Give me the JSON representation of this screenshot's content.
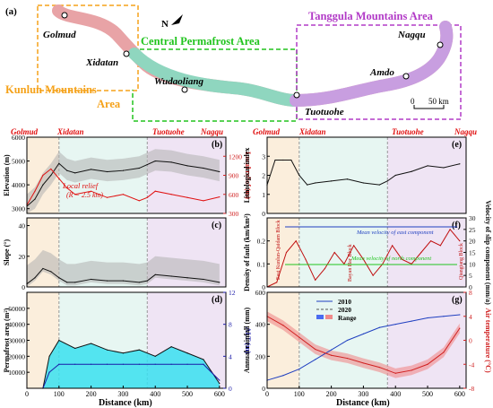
{
  "map": {
    "label": "(a)",
    "stations": [
      "Golmud",
      "Xidatan",
      "Wudaoliang",
      "Tuotuohe",
      "Amdo",
      "Nagqu"
    ],
    "regions": {
      "kunlun_a": "Kunlun  Mountains",
      "kunlun_b": "Area",
      "central": "Central Permafrost  Area",
      "tanggula": "Tanggula Mountains Area"
    },
    "scale": {
      "zero": "0",
      "km": "50 km"
    },
    "north": "N",
    "colors": {
      "kunlun": "#f5a21a",
      "central": "#22c41f",
      "tanggula": "#b23bc7"
    }
  },
  "axis_stations": {
    "golmud": "Golmud",
    "xidatan": "Xidatan",
    "tuotuohe": "Tuotuohe",
    "nagqu": "Nagqu"
  },
  "x_label": "Distance (km)",
  "chart_data": [
    {
      "id": "b",
      "type": "line",
      "label": "(b)",
      "ylabel": "Elevation (m)",
      "ylabel_right": "Local relief (m)",
      "ylim": [
        2800,
        6000
      ],
      "y_ticks": [
        3000,
        4000,
        5000,
        6000
      ],
      "ylim_right": [
        300,
        1500
      ],
      "y_ticks_right": [
        300,
        600,
        900,
        1200
      ],
      "annotation": "Local relief",
      "annotation2": "(R = 2.5 km)",
      "series": [
        {
          "values_x": [
            0,
            25,
            50,
            75,
            100,
            125,
            150,
            200,
            250,
            300,
            350,
            375,
            400,
            450,
            500,
            550,
            600
          ],
          "values_y": [
            3100,
            3400,
            4000,
            4400,
            4900,
            4600,
            4500,
            4650,
            4550,
            4600,
            4700,
            4850,
            5000,
            4950,
            4800,
            4700,
            4550
          ]
        },
        {
          "values_x": [
            0,
            25,
            50,
            75,
            100,
            125,
            150,
            200,
            250,
            300,
            350,
            375,
            400,
            450,
            500,
            550,
            600
          ],
          "values_y": [
            430,
            650,
            900,
            1000,
            850,
            700,
            600,
            650,
            550,
            600,
            500,
            550,
            650,
            600,
            550,
            500,
            560
          ]
        }
      ]
    },
    {
      "id": "c",
      "type": "line",
      "label": "(c)",
      "ylabel": "Slope (°)",
      "ylim": [
        0,
        45
      ],
      "y_ticks": [
        0,
        20,
        40
      ],
      "series": [
        {
          "values_x": [
            0,
            25,
            50,
            75,
            100,
            125,
            150,
            200,
            250,
            300,
            350,
            375,
            400,
            450,
            500,
            550,
            600
          ],
          "values_y": [
            2,
            6,
            12,
            10,
            6,
            3,
            3,
            5,
            4,
            4,
            3,
            4,
            8,
            7,
            6,
            5,
            3
          ]
        }
      ]
    },
    {
      "id": "d",
      "type": "area",
      "label": "(d)",
      "ylabel": "Permafrost area (m²)",
      "ylabel_right": "ALT (m)",
      "ylim": [
        0,
        60000
      ],
      "y_ticks": [
        10000,
        20000,
        30000,
        40000,
        50000
      ],
      "ylim_right": [
        0,
        12
      ],
      "y_ticks_right": [
        0,
        4,
        8,
        12
      ],
      "series": [
        {
          "values_x": [
            0,
            50,
            70,
            100,
            150,
            200,
            250,
            300,
            350,
            400,
            450,
            500,
            550,
            600
          ],
          "values_y": [
            0,
            0,
            20000,
            30000,
            25000,
            28000,
            24000,
            22000,
            24000,
            20000,
            26000,
            22000,
            18000,
            3000
          ]
        },
        {
          "values_x": [
            0,
            50,
            70,
            100,
            150,
            200,
            250,
            300,
            350,
            400,
            450,
            500,
            550,
            600
          ],
          "values_y": [
            0,
            0,
            2,
            3,
            3,
            3,
            3,
            3,
            3,
            3,
            3,
            3,
            3,
            1
          ]
        }
      ]
    },
    {
      "id": "e",
      "type": "line",
      "label": "(e)",
      "ylabel": "Lithological index",
      "ylim": [
        0,
        4
      ],
      "y_ticks": [
        0,
        1,
        2,
        3
      ],
      "series": [
        {
          "values_x": [
            0,
            25,
            50,
            75,
            100,
            125,
            150,
            200,
            250,
            300,
            350,
            375,
            400,
            450,
            500,
            550,
            600
          ],
          "values_y": [
            1.5,
            2.8,
            2.8,
            2.8,
            2.0,
            1.5,
            1.6,
            1.7,
            1.8,
            1.6,
            1.5,
            1.7,
            2.0,
            2.2,
            2.5,
            2.4,
            2.6
          ]
        }
      ]
    },
    {
      "id": "f",
      "type": "line",
      "label": "(f)",
      "ylabel": "Density of fault (km/km²)",
      "ylabel_right": "Velocity of slip component (mm/a)",
      "ylim": [
        0,
        0.3
      ],
      "y_ticks": [
        0,
        0.1,
        0.2
      ],
      "ylim_right": [
        0,
        30
      ],
      "y_ticks_right": [
        0,
        5,
        10,
        15,
        20,
        25,
        30
      ],
      "annotations": [
        "East Kunlun-Qaidam Block",
        "Bayan Har Block",
        "Qiangtang Block",
        "Mean velocity of east component",
        "Mean velocity of north component"
      ],
      "series": [
        {
          "values_x": [
            0,
            30,
            60,
            90,
            120,
            150,
            180,
            210,
            240,
            270,
            300,
            330,
            360,
            390,
            420,
            450,
            480,
            510,
            540,
            570,
            600
          ],
          "values_y": [
            0,
            0.02,
            0.15,
            0.2,
            0.12,
            0.03,
            0.08,
            0.15,
            0.1,
            0.18,
            0.12,
            0.05,
            0.1,
            0.18,
            0.12,
            0.1,
            0.15,
            0.2,
            0.18,
            0.25,
            0.2
          ]
        }
      ]
    },
    {
      "id": "g",
      "type": "line",
      "label": "(g)",
      "ylabel": "Annual rainfall (mm)",
      "ylabel_right": "Air temperature (°C)",
      "ylim": [
        0,
        600
      ],
      "y_ticks": [
        0,
        200,
        400,
        600
      ],
      "ylim_right": [
        -8,
        8
      ],
      "y_ticks_right": [
        -8,
        -4,
        0,
        4,
        8
      ],
      "legend": [
        "2010",
        "2020",
        "Range"
      ],
      "series": [
        {
          "values_x": [
            0,
            50,
            100,
            150,
            200,
            250,
            300,
            350,
            400,
            450,
            500,
            550,
            600
          ],
          "values_y": [
            50,
            80,
            120,
            180,
            240,
            300,
            340,
            380,
            400,
            420,
            440,
            450,
            460
          ]
        },
        {
          "values_x": [
            0,
            50,
            100,
            150,
            200,
            250,
            300,
            350,
            400,
            450,
            500,
            550,
            600
          ],
          "values_y": [
            4,
            2.5,
            0.5,
            -1.5,
            -2.5,
            -3,
            -3.8,
            -4.5,
            -5.5,
            -5,
            -4,
            -2,
            2
          ]
        }
      ]
    }
  ],
  "x_ticks": [
    "0",
    "100",
    "200",
    "300",
    "400",
    "500",
    "600"
  ]
}
